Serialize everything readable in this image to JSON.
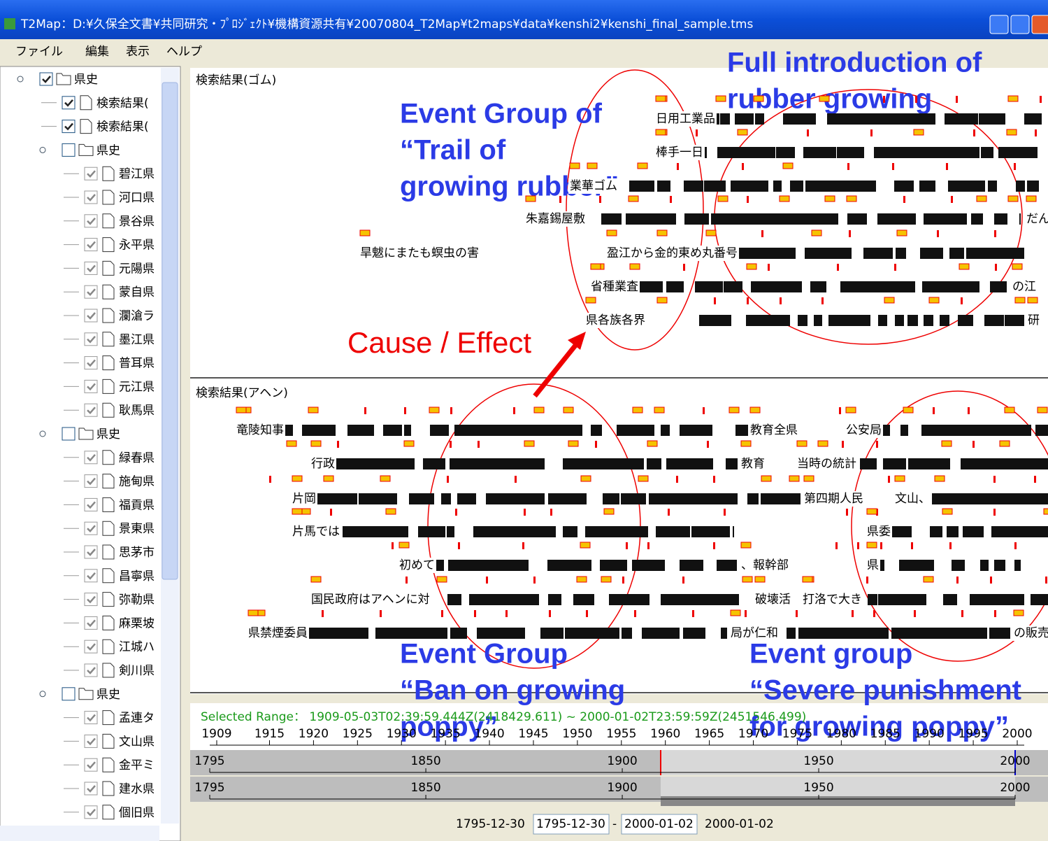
{
  "window": {
    "title": "T2Map：D:¥久保全文書¥共同研究・ﾌﾟﾛｼﾞｪｸﾄ¥機構資源共有¥20070804_T2Map¥t2maps¥data¥kenshi2¥kenshi_final_sample.tms",
    "menu": [
      "ファイル",
      "編集",
      "表示",
      "ヘルプ"
    ]
  },
  "tree": {
    "nodes": [
      {
        "label": "県史",
        "level": 0,
        "kind": "folder",
        "checked": true
      },
      {
        "label": "検索結果(",
        "level": 1,
        "kind": "doc",
        "checked": true
      },
      {
        "label": "検索結果(",
        "level": 1,
        "kind": "doc",
        "checked": true
      },
      {
        "label": "県史",
        "level": 1,
        "kind": "folder",
        "checked": false
      },
      {
        "label": "碧江県",
        "level": 2,
        "kind": "doc",
        "checked": true
      },
      {
        "label": "河口県",
        "level": 2,
        "kind": "doc",
        "checked": true
      },
      {
        "label": "景谷県",
        "level": 2,
        "kind": "doc",
        "checked": true
      },
      {
        "label": "永平県",
        "level": 2,
        "kind": "doc",
        "checked": true
      },
      {
        "label": "元陽県",
        "level": 2,
        "kind": "doc",
        "checked": true
      },
      {
        "label": "蒙自県",
        "level": 2,
        "kind": "doc",
        "checked": true
      },
      {
        "label": "瀾滄ラ",
        "level": 2,
        "kind": "doc",
        "checked": true
      },
      {
        "label": "墨江県",
        "level": 2,
        "kind": "doc",
        "checked": true
      },
      {
        "label": "普耳県",
        "level": 2,
        "kind": "doc",
        "checked": true
      },
      {
        "label": "元江県",
        "level": 2,
        "kind": "doc",
        "checked": true
      },
      {
        "label": "耿馬県",
        "level": 2,
        "kind": "doc",
        "checked": true
      },
      {
        "label": "県史",
        "level": 1,
        "kind": "folder",
        "checked": false
      },
      {
        "label": "緑春県",
        "level": 2,
        "kind": "doc",
        "checked": true
      },
      {
        "label": "施甸県",
        "level": 2,
        "kind": "doc",
        "checked": true
      },
      {
        "label": "福貢県",
        "level": 2,
        "kind": "doc",
        "checked": true
      },
      {
        "label": "景東県",
        "level": 2,
        "kind": "doc",
        "checked": true
      },
      {
        "label": "思茅市",
        "level": 2,
        "kind": "doc",
        "checked": true
      },
      {
        "label": "昌寧県",
        "level": 2,
        "kind": "doc",
        "checked": true
      },
      {
        "label": "弥勒県",
        "level": 2,
        "kind": "doc",
        "checked": true
      },
      {
        "label": "麻栗坡",
        "level": 2,
        "kind": "doc",
        "checked": true
      },
      {
        "label": "江城ハ",
        "level": 2,
        "kind": "doc",
        "checked": true
      },
      {
        "label": "剣川県",
        "level": 2,
        "kind": "doc",
        "checked": true
      },
      {
        "label": "県史",
        "level": 1,
        "kind": "folder",
        "checked": false
      },
      {
        "label": "孟連タ",
        "level": 2,
        "kind": "doc",
        "checked": true
      },
      {
        "label": "文山県",
        "level": 2,
        "kind": "doc",
        "checked": true
      },
      {
        "label": "金平ミ",
        "level": 2,
        "kind": "doc",
        "checked": true
      },
      {
        "label": "建水県",
        "level": 2,
        "kind": "doc",
        "checked": true
      },
      {
        "label": "個旧県",
        "level": 2,
        "kind": "doc",
        "checked": true
      }
    ]
  },
  "top_panel": {
    "title": "検索結果(ゴム)",
    "rows": [
      [
        "日用工業品"
      ],
      [
        "棒手一日"
      ],
      [
        "業華ゴム"
      ],
      [
        "朱嘉錫屋敷",
        "だん"
      ],
      [
        "旱魃にまたも螟虫の害",
        "盈江から金的東め丸番号"
      ],
      [
        "省種業査",
        "の江"
      ],
      [
        "県各族各界",
        "研"
      ]
    ]
  },
  "bottom_panel": {
    "title": "検索結果(アヘン)",
    "rows": [
      [
        "竜陵知事",
        "教育全県",
        "公安局"
      ],
      [
        "行政",
        "教育",
        "当時の統計"
      ],
      [
        "片岡",
        "第四期人民",
        "文山、"
      ],
      [
        "片馬では",
        "県委"
      ],
      [
        "初めて",
        "、報幹部",
        "県"
      ],
      [
        "国民政府はアヘンに対",
        "破壊活",
        "打洛で大き"
      ],
      [
        "県禁煙委員",
        "局が仁和",
        "の販売"
      ]
    ]
  },
  "annotations": {
    "rubber_full": [
      "Full introduction of",
      "rubber growing"
    ],
    "rubber_trail": [
      "Event Group of",
      "“Trail of",
      "growing rubber”"
    ],
    "cause_effect": "Cause / Effect",
    "poppy_ban": [
      "Event Group",
      "“Ban on growing",
      "poppy”"
    ],
    "poppy_punish": [
      "Event group",
      "“Severe punishment",
      "for growing poppy”"
    ]
  },
  "timeline": {
    "selected_range": "Selected Range： 1909-05-03T02:39:59.444Z(2418429.611) ~ 2000-01-02T23:59:59Z(2451546.499)",
    "upper_ticks": [
      1909,
      1915,
      1920,
      1925,
      1930,
      1935,
      1940,
      1945,
      1950,
      1955,
      1960,
      1965,
      1970,
      1975,
      1980,
      1985,
      1990,
      1995,
      2000
    ],
    "lower_ticks": [
      1795,
      1850,
      1900,
      1950,
      2000
    ],
    "start_label": "1795-12-30",
    "start_field": "1795-12-30",
    "separator": "-",
    "end_field": "2000-01-02",
    "end_label": "2000-01-02"
  }
}
